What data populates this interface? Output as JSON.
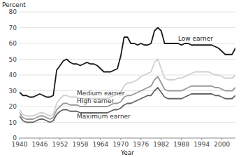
{
  "chart_data": {
    "type": "line",
    "x_label": "Year",
    "y_label": "Percent",
    "x": [
      1940,
      1941,
      1942,
      1943,
      1944,
      1945,
      1946,
      1947,
      1948,
      1949,
      1950,
      1951,
      1952,
      1953,
      1954,
      1955,
      1956,
      1957,
      1958,
      1959,
      1960,
      1961,
      1962,
      1963,
      1964,
      1965,
      1966,
      1967,
      1968,
      1969,
      1970,
      1971,
      1972,
      1973,
      1974,
      1975,
      1976,
      1977,
      1978,
      1979,
      1980,
      1981,
      1982,
      1983,
      1984,
      1985,
      1986,
      1987,
      1988,
      1989,
      1990,
      1991,
      1992,
      1993,
      1994,
      1995,
      1996,
      1997,
      1998,
      1999,
      2000,
      2001,
      2002,
      2003,
      2004
    ],
    "series": [
      {
        "name": "Maximum earner",
        "color": "#666666",
        "values": [
          14,
          11,
          10,
          10,
          10,
          11,
          12,
          12,
          11,
          10,
          11,
          15,
          17,
          18,
          18,
          17,
          17,
          17,
          16,
          16,
          16,
          16,
          16,
          16,
          16,
          16,
          16,
          17,
          18,
          18,
          19,
          21,
          22,
          22,
          23,
          24,
          25,
          26,
          27,
          27,
          30,
          32,
          29,
          26,
          25,
          25,
          25,
          25,
          25,
          26,
          27,
          28,
          28,
          28,
          28,
          28,
          28,
          28,
          27,
          27,
          26,
          25,
          25,
          25,
          27
        ]
      },
      {
        "name": "High earner",
        "color": "#999999",
        "values": [
          16,
          13,
          12,
          12,
          12,
          13,
          14,
          14,
          13,
          12,
          13,
          18,
          20,
          22,
          22,
          21,
          21,
          21,
          20,
          20,
          20,
          20,
          20,
          20,
          20,
          20,
          20,
          21,
          22,
          22,
          23,
          26,
          27,
          27,
          28,
          29,
          30,
          31,
          32,
          33,
          37,
          39,
          35,
          31,
          30,
          30,
          30,
          30,
          30,
          31,
          32,
          33,
          33,
          33,
          33,
          33,
          33,
          33,
          32,
          32,
          31,
          30,
          30,
          30,
          32
        ]
      },
      {
        "name": "Medium earner",
        "color": "#d0d0d0",
        "values": [
          18,
          15,
          14,
          14,
          14,
          15,
          16,
          16,
          15,
          14,
          15,
          22,
          25,
          27,
          27,
          26,
          26,
          26,
          25,
          25,
          25,
          25,
          25,
          25,
          25,
          25,
          25,
          26,
          27,
          28,
          29,
          33,
          35,
          35,
          36,
          37,
          39,
          40,
          41,
          42,
          48,
          50,
          44,
          38,
          37,
          37,
          37,
          38,
          38,
          39,
          40,
          41,
          42,
          42,
          42,
          42,
          42,
          41,
          40,
          40,
          39,
          38,
          38,
          38,
          40
        ]
      },
      {
        "name": "Low earner",
        "color": "#1a1a1a",
        "values": [
          29,
          27,
          27,
          26,
          26,
          27,
          28,
          27,
          26,
          26,
          27,
          43,
          46,
          49,
          50,
          48,
          47,
          47,
          46,
          47,
          48,
          47,
          47,
          46,
          44,
          42,
          42,
          42,
          43,
          44,
          52,
          64,
          64,
          60,
          60,
          59,
          60,
          59,
          59,
          60,
          68,
          70,
          68,
          60,
          60,
          60,
          60,
          60,
          59,
          60,
          60,
          59,
          59,
          59,
          59,
          59,
          59,
          59,
          58,
          57,
          55,
          53,
          53,
          53,
          57
        ]
      }
    ],
    "xlim": [
      1940,
      2004
    ],
    "ylim": [
      0,
      80
    ],
    "xticks": [
      1940,
      1946,
      1952,
      1958,
      1964,
      1970,
      1976,
      1982,
      1988,
      1994,
      2000
    ],
    "yticks": [
      0,
      10,
      20,
      30,
      40,
      50,
      60,
      70,
      80
    ],
    "grid": true
  }
}
